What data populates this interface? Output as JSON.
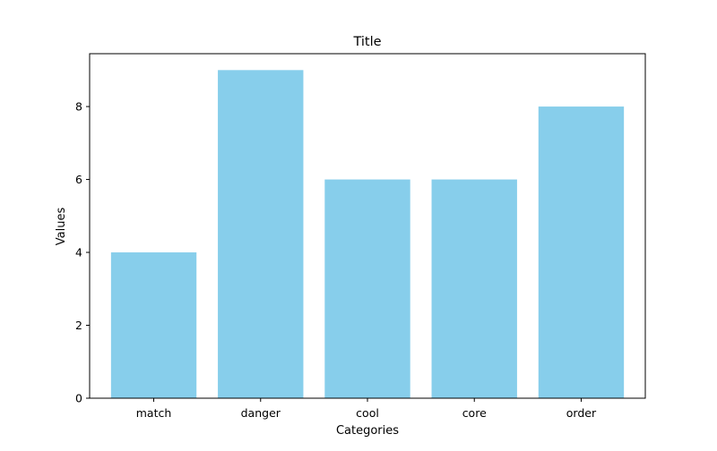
{
  "chart_data": {
    "type": "bar",
    "title": "Title",
    "xlabel": "Categories",
    "ylabel": "Values",
    "categories": [
      "match",
      "danger",
      "cool",
      "core",
      "order"
    ],
    "values": [
      4,
      9,
      6,
      6,
      8
    ],
    "ylim": [
      0,
      9.45
    ],
    "yticks": [
      0,
      2,
      4,
      6,
      8
    ],
    "bar_color": "#87CEEB",
    "grid": false,
    "legend": "none"
  }
}
